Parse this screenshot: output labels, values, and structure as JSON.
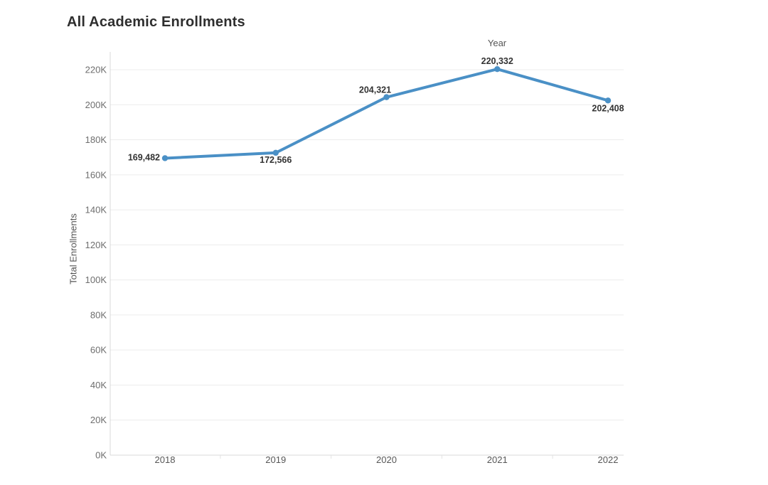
{
  "chart_data": {
    "type": "line",
    "title": "All Academic Enrollments",
    "xlabel": "Year",
    "ylabel": "Total Enrollments",
    "categories": [
      "2018",
      "2019",
      "2020",
      "2021",
      "2022"
    ],
    "series": [
      {
        "name": "Total Enrollments",
        "values": [
          169482,
          172566,
          204321,
          220332,
          202408
        ],
        "point_labels": [
          "169,482",
          "172,566",
          "204,321",
          "220,332",
          "202,408"
        ]
      }
    ],
    "ylim": [
      0,
      220000
    ],
    "ytick_step": 20000,
    "ytick_labels": [
      "0K",
      "20K",
      "40K",
      "60K",
      "80K",
      "100K",
      "120K",
      "140K",
      "160K",
      "180K",
      "200K",
      "220K"
    ],
    "grid": "horizontal-only",
    "legend": "none",
    "colors": {
      "line": "#4a90c6",
      "marker": "#4a90c6",
      "grid": "#ececec",
      "axis": "#d8d8d8",
      "tick_label": "#6e6e6e",
      "data_label": "#333333",
      "title": "#2e2e2e",
      "background": "#ffffff"
    }
  }
}
